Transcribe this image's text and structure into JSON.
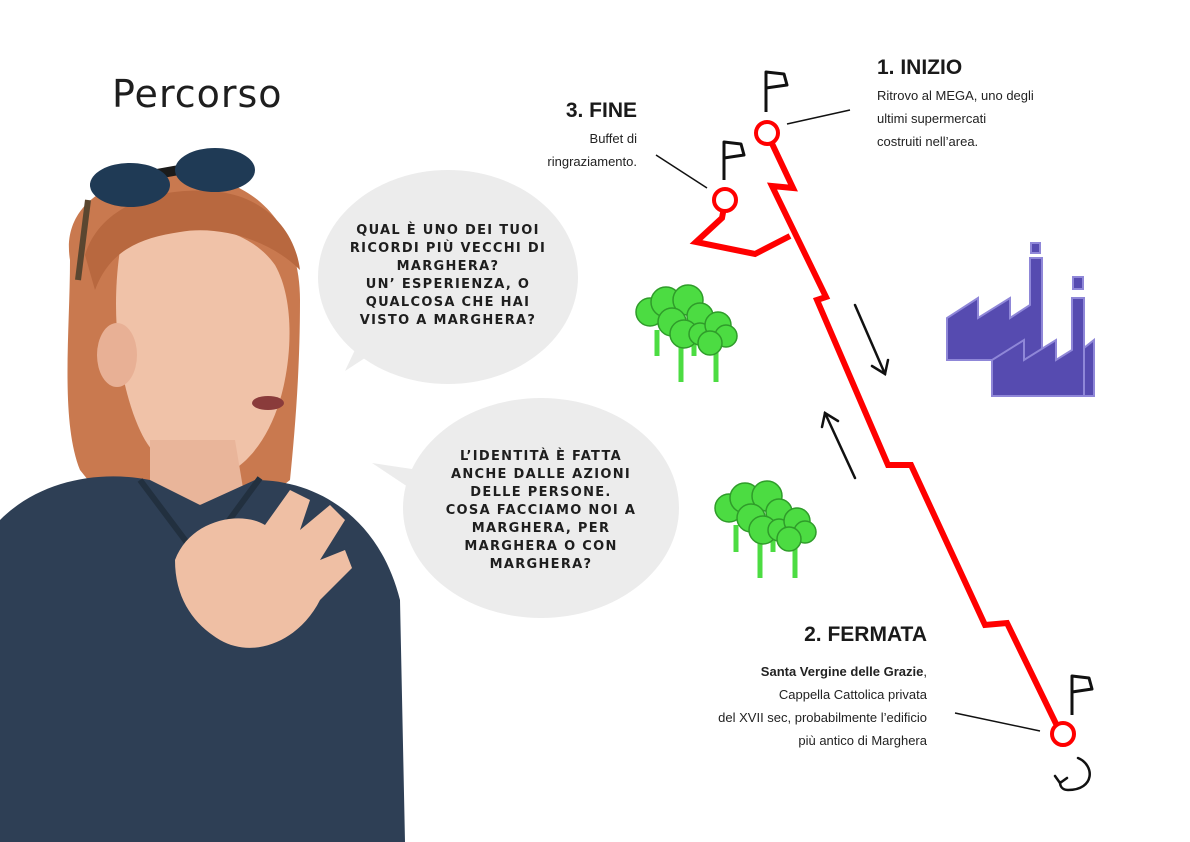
{
  "page": {
    "title": "Percorso"
  },
  "bubbles": [
    {
      "lines": [
        "QUAL È UNO DEI TUOI",
        "RICORDI PIÙ VECCHI DI",
        "MARGHERA?",
        "UN’ ESPERIENZA, O",
        "QUALCOSA CHE HAI",
        "VISTO A MARGHERA?"
      ]
    },
    {
      "lines": [
        "L’IDENTITÀ È FATTA",
        "ANCHE DALLE AZIONI",
        "DELLE PERSONE.",
        "COSA FACCIAMO NOI A",
        "MARGHERA, PER",
        "MARGHERA O CON",
        "MARGHERA?"
      ]
    }
  ],
  "stops": {
    "start": {
      "heading": "1. INIZIO",
      "lines": [
        "Ritrovo al MEGA, uno degli",
        "ultimi supermercati",
        "costruiti nell’area."
      ]
    },
    "end": {
      "heading": "3. FINE",
      "lines": [
        "Buffet di",
        "ringraziamento."
      ]
    },
    "stop": {
      "heading": "2. FERMATA",
      "bold": "Santa Vergine delle Grazie",
      "bold_suffix": ",",
      "lines": [
        "Cappella Cattolica privata",
        "del XVII sec, probabilmente l’edificio",
        "più antico di Marghera"
      ]
    }
  },
  "icons": {
    "flag": "flag-icon",
    "tree": "tree-group-icon",
    "factory": "factory-icon",
    "direction": "arrow-icon",
    "loop": "loop-arrow-icon"
  },
  "colors": {
    "route": "#ff0000",
    "tree": "#4cdc42",
    "factory": "#564bb0",
    "bubble": "#ececec",
    "text": "#1e1e1e"
  }
}
